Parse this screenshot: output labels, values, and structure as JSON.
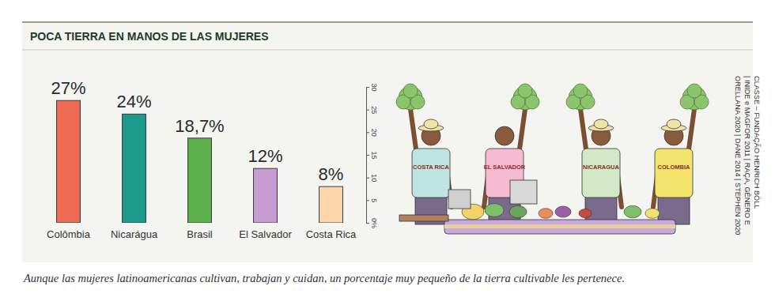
{
  "chart_data": {
    "type": "bar",
    "title": "POCA TIERRA EN MANOS DE LAS MUJERES",
    "categories": [
      "Colômbia",
      "Nicarágua",
      "Brasil",
      "El Salvador",
      "Costa Rica"
    ],
    "values": [
      27,
      24,
      18.7,
      12,
      8
    ],
    "value_labels": [
      "27%",
      "24%",
      "18,7%",
      "12%",
      "8%"
    ],
    "colors": [
      "#ee6a52",
      "#1c9b8c",
      "#5cb14c",
      "#c99bd3",
      "#fcd6aa"
    ],
    "ylim": [
      0,
      30
    ],
    "yticks": [
      {
        "value": 0,
        "label": "0%"
      },
      5,
      10,
      15,
      20,
      25,
      30
    ],
    "grid": false,
    "data_labels": true,
    "tick_labels": "x",
    "source": [
      "ORELLANA 2020 | DANE 2014 | STEPHEN 2020",
      "| INIDE e MAGFOR 2011 | RAÇA, GÊNERO E",
      "CLASSE – FUNDAÇÃO HENRICH BÖLL"
    ],
    "caption": "Aunque las mujeres latinoamericanas cultivan, trabajan y cuidan, un porcentaje muy pequeño de la tierra cultivable les pertenece.",
    "illustration_labels": [
      "COSTA RICA",
      "EL SALVADOR",
      "NICARAGUA",
      "COLOMBIA"
    ]
  }
}
